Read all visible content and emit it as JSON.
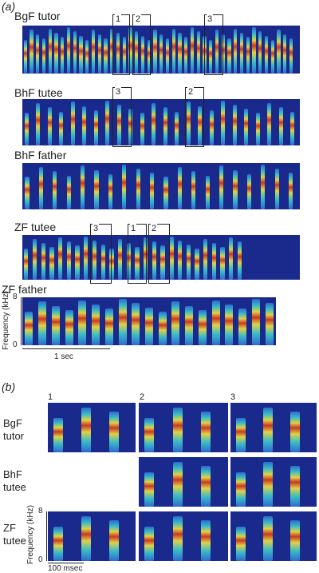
{
  "panel_a": {
    "letter": "(a)",
    "rows": [
      {
        "label": "BgF tutor",
        "boxes": [
          "1",
          "2",
          "3"
        ]
      },
      {
        "label": "BhF tutee",
        "boxes": [
          "3",
          "2"
        ]
      },
      {
        "label": "BhF father",
        "boxes": []
      },
      {
        "label": "ZF tutee",
        "boxes": [
          "3",
          "1",
          "2"
        ]
      },
      {
        "label": "ZF father",
        "boxes": []
      }
    ],
    "y_axis": {
      "label": "Frequency (kHz)",
      "ticks": [
        "0",
        "8"
      ]
    },
    "scale_bar": "1 sec"
  },
  "panel_b": {
    "letter": "(b)",
    "columns": [
      "1",
      "2",
      "3"
    ],
    "rows": [
      {
        "label_line1": "BgF",
        "label_line2": "tutor"
      },
      {
        "label_line1": "BhF",
        "label_line2": "tutee"
      },
      {
        "label_line1": "ZF",
        "label_line2": "tutee"
      }
    ],
    "y_axis": {
      "label": "Frequency (kHz)",
      "ticks": [
        "0",
        "8"
      ]
    },
    "scale_bar": "100 msec"
  },
  "colors": {
    "background": "#1a2a8c",
    "low": "#2f6fd6",
    "mid": "#3fc9c9",
    "high": "#f0e040",
    "peak": "#d93a1a"
  }
}
